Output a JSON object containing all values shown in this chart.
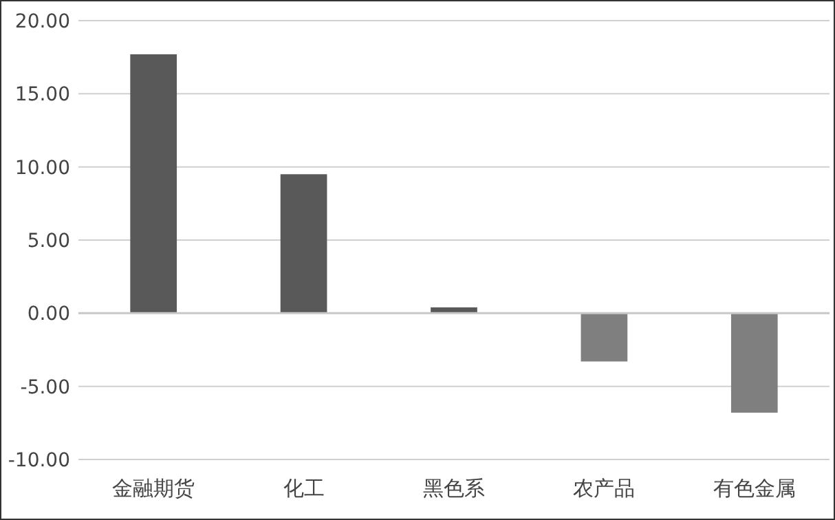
{
  "chart_data": {
    "type": "bar",
    "categories": [
      "金融期货",
      "化工",
      "黑色系",
      "农产品",
      "有色金属"
    ],
    "values": [
      17.7,
      9.5,
      0.4,
      -3.3,
      -6.8
    ],
    "colors": [
      "#595959",
      "#595959",
      "#595959",
      "#7f7f7f",
      "#7f7f7f"
    ],
    "ylim": [
      -10,
      20
    ],
    "yticks": [
      {
        "value": -10,
        "label": "-10.00"
      },
      {
        "value": -5,
        "label": "-5.00"
      },
      {
        "value": 0,
        "label": "0.00"
      },
      {
        "value": 5,
        "label": "5.00"
      },
      {
        "value": 10,
        "label": "10.00"
      },
      {
        "value": 15,
        "label": "15.00"
      },
      {
        "value": 20,
        "label": "20.00"
      }
    ],
    "grid": "y"
  }
}
